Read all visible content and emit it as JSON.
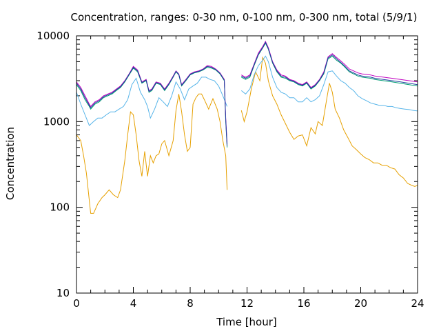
{
  "chart_data": {
    "type": "line",
    "title": "Concentration, ranges: 0-30 nm, 0-100 nm, 0-300 nm, total (5/9/1)",
    "xlabel": "Time [hour]",
    "ylabel": "Concentration",
    "xlim": [
      0,
      24
    ],
    "ylim": [
      10,
      10000
    ],
    "yscale": "log",
    "grid": false,
    "legend": "none",
    "x_ticks": [
      0,
      4,
      8,
      12,
      16,
      20,
      24
    ],
    "x_tick_labels": [
      "0",
      "4",
      "8",
      "12",
      "16",
      "20",
      "24"
    ],
    "y_ticks": [
      10,
      100,
      1000,
      10000
    ],
    "y_tick_labels": [
      "10",
      "100",
      "1000",
      "10000"
    ],
    "series": [
      {
        "color": "#e6a000",
        "segments": [
          {
            "x": [
              0.0,
              0.3,
              0.5,
              0.7,
              0.9,
              1.0,
              1.2,
              1.5,
              1.8,
              2.0,
              2.3,
              2.6,
              2.9,
              3.1,
              3.4,
              3.6,
              3.8,
              4.0,
              4.2,
              4.4,
              4.6,
              4.8,
              5.0,
              5.2,
              5.4,
              5.6,
              5.8,
              6.0,
              6.2,
              6.5,
              6.8,
              7.0,
              7.2,
              7.4,
              7.6,
              7.8,
              8.0,
              8.2,
              8.4,
              8.6,
              8.8,
              9.0,
              9.3,
              9.6,
              9.9,
              10.1,
              10.3,
              10.5,
              10.6
            ],
            "y": [
              700,
              600,
              400,
              250,
              120,
              85,
              85,
              110,
              130,
              140,
              160,
              140,
              130,
              160,
              350,
              700,
              1300,
              1200,
              700,
              350,
              230,
              450,
              230,
              400,
              330,
              400,
              420,
              550,
              600,
              400,
              600,
              1350,
              2100,
              1300,
              700,
              450,
              500,
              1600,
              1900,
              2100,
              2100,
              1800,
              1400,
              1850,
              1400,
              1000,
              600,
              400,
              160
            ]
          },
          {
            "x": [
              11.6,
              11.8,
              12.0,
              12.3,
              12.6,
              12.9,
              13.1,
              13.3,
              13.5,
              13.8,
              14.1,
              14.4,
              14.7,
              15.0,
              15.3,
              15.6,
              15.9,
              16.2,
              16.5,
              16.8,
              17.0,
              17.3,
              17.6,
              17.8,
              18.0,
              18.2,
              18.5,
              18.8,
              19.1,
              19.4,
              19.7,
              20.0,
              20.3,
              20.6,
              20.9,
              21.2,
              21.5,
              21.8,
              22.1,
              22.4,
              22.7,
              23.0,
              23.3,
              23.6,
              23.8,
              24.0
            ],
            "y": [
              1350,
              1000,
              1300,
              2400,
              3800,
              3000,
              5600,
              4800,
              3000,
              2000,
              1600,
              1200,
              950,
              750,
              620,
              680,
              700,
              520,
              850,
              720,
              1000,
              900,
              1800,
              2800,
              2200,
              1400,
              1100,
              800,
              650,
              520,
              470,
              420,
              380,
              360,
              330,
              330,
              310,
              310,
              290,
              280,
              240,
              220,
              190,
              180,
              175,
              180
            ]
          }
        ]
      },
      {
        "color": "#56b4e9",
        "segments": [
          {
            "x": [
              0.0,
              0.3,
              0.6,
              0.9,
              1.2,
              1.5,
              1.8,
              2.1,
              2.4,
              2.7,
              3.0,
              3.3,
              3.6,
              3.9,
              4.2,
              4.5,
              4.8,
              5.0,
              5.2,
              5.5,
              5.8,
              6.1,
              6.4,
              6.7,
              7.0,
              7.3,
              7.6,
              7.9,
              8.2,
              8.5,
              8.8,
              9.1,
              9.4,
              9.7,
              10.0,
              10.3,
              10.6
            ],
            "y": [
              2200,
              1600,
              1200,
              900,
              1000,
              1100,
              1100,
              1200,
              1300,
              1300,
              1400,
              1500,
              1800,
              2700,
              3200,
              2200,
              1800,
              1500,
              1100,
              1400,
              1900,
              1700,
              1500,
              2000,
              2900,
              2400,
              1800,
              2400,
              2600,
              2800,
              3300,
              3300,
              3100,
              3000,
              2600,
              2000,
              1500
            ]
          },
          {
            "x": [
              11.6,
              11.9,
              12.2,
              12.5,
              12.8,
              13.1,
              13.3,
              13.5,
              13.8,
              14.1,
              14.4,
              14.7,
              15.0,
              15.3,
              15.6,
              15.9,
              16.2,
              16.5,
              16.8,
              17.1,
              17.4,
              17.7,
              18.0,
              18.3,
              18.6,
              18.9,
              19.2,
              19.5,
              19.8,
              20.1,
              20.4,
              20.7,
              21.0,
              21.3,
              21.6,
              21.9,
              22.2,
              22.5,
              22.8,
              23.1,
              23.4,
              23.7,
              24.0
            ],
            "y": [
              2300,
              2100,
              2400,
              3500,
              4500,
              5200,
              5800,
              5000,
              3300,
              2500,
              2200,
              2100,
              1900,
              1900,
              1700,
              1700,
              1900,
              1700,
              1800,
              2000,
              2700,
              3800,
              3900,
              3400,
              3000,
              2800,
              2500,
              2300,
              2000,
              1850,
              1750,
              1650,
              1600,
              1550,
              1550,
              1500,
              1500,
              1450,
              1420,
              1400,
              1380,
              1350,
              1330
            ]
          }
        ]
      },
      {
        "color": "#009e73",
        "segments": [
          {
            "x": [
              0.0,
              0.3,
              0.6,
              0.9,
              1.0,
              1.3,
              1.6,
              1.9,
              2.2,
              2.5,
              2.8,
              3.1,
              3.4,
              3.7,
              4.0,
              4.3,
              4.6,
              4.9,
              5.1,
              5.3,
              5.6,
              5.9,
              6.2,
              6.5,
              6.8,
              7.0,
              7.2,
              7.4,
              7.7,
              8.0,
              8.3,
              8.6,
              8.9,
              9.2,
              9.5,
              9.8,
              10.1,
              10.4,
              10.5,
              10.6
            ],
            "y": [
              2700,
              2300,
              1800,
              1500,
              1400,
              1600,
              1700,
              1900,
              2000,
              2100,
              2300,
              2500,
              2900,
              3500,
              4200,
              3800,
              2800,
              3000,
              2200,
              2300,
              2800,
              2700,
              2300,
              2700,
              3300,
              3800,
              3500,
              2600,
              3000,
              3500,
              3700,
              3800,
              4000,
              4300,
              4200,
              4000,
              3600,
              3000,
              1000,
              500
            ]
          },
          {
            "x": [
              11.6,
              11.9,
              12.2,
              12.5,
              12.8,
              13.1,
              13.3,
              13.5,
              13.8,
              14.1,
              14.4,
              14.7,
              15.0,
              15.3,
              15.6,
              15.9,
              16.2,
              16.5,
              16.8,
              17.1,
              17.4,
              17.7,
              18.0,
              18.3,
              18.6,
              18.9,
              19.2,
              19.5,
              19.8,
              20.1,
              20.4,
              20.7,
              21.0,
              21.3,
              21.6,
              21.9,
              22.2,
              22.5,
              22.8,
              23.1,
              23.4,
              23.7,
              24.0
            ],
            "y": [
              3300,
              3100,
              3300,
              4500,
              6000,
              7200,
              8200,
              7000,
              4800,
              3800,
              3300,
              3200,
              3000,
              2900,
              2700,
              2600,
              2800,
              2400,
              2600,
              3000,
              3600,
              5400,
              5800,
              5200,
              4800,
              4300,
              3800,
              3600,
              3400,
              3300,
              3250,
              3200,
              3100,
              3050,
              3000,
              2950,
              2900,
              2850,
              2800,
              2750,
              2700,
              2650,
              2600
            ]
          }
        ]
      },
      {
        "color": "#c000c0",
        "segments": [
          {
            "x": [
              0.0,
              0.3,
              0.6,
              0.9,
              1.0,
              1.3,
              1.6,
              1.9,
              2.2,
              2.5,
              2.8,
              3.1,
              3.4,
              3.7,
              4.0,
              4.3,
              4.6,
              4.9,
              5.1,
              5.3,
              5.6,
              5.9,
              6.2,
              6.5,
              6.8,
              7.0,
              7.2,
              7.4,
              7.7,
              8.0,
              8.3,
              8.6,
              8.9,
              9.2,
              9.5,
              9.8,
              10.1,
              10.4,
              10.5,
              10.6
            ],
            "y": [
              2900,
              2500,
              2000,
              1600,
              1500,
              1700,
              1800,
              2000,
              2100,
              2200,
              2400,
              2600,
              3000,
              3600,
              4400,
              4000,
              2900,
              3100,
              2300,
              2400,
              2900,
              2800,
              2400,
              2800,
              3400,
              3900,
              3600,
              2700,
              3100,
              3600,
              3800,
              3900,
              4100,
              4500,
              4400,
              4100,
              3700,
              3100,
              1100,
              550
            ]
          },
          {
            "x": [
              11.6,
              11.9,
              12.2,
              12.5,
              12.8,
              13.1,
              13.3,
              13.5,
              13.8,
              14.1,
              14.4,
              14.7,
              15.0,
              15.3,
              15.6,
              15.9,
              16.2,
              16.5,
              16.8,
              17.1,
              17.4,
              17.7,
              18.0,
              18.3,
              18.6,
              18.9,
              19.2,
              19.5,
              19.8,
              20.1,
              20.4,
              20.7,
              21.0,
              21.3,
              21.6,
              21.9,
              22.2,
              22.5,
              22.8,
              23.1,
              23.4,
              23.7,
              24.0
            ],
            "y": [
              3500,
              3300,
              3500,
              4700,
              6300,
              7500,
              8600,
              7300,
              5000,
              4000,
              3500,
              3400,
              3100,
              3000,
              2800,
              2700,
              2900,
              2500,
              2700,
              3100,
              3800,
              5700,
              6200,
              5600,
              5100,
              4600,
              4100,
              3900,
              3700,
              3600,
              3550,
              3500,
              3400,
              3350,
              3300,
              3250,
              3200,
              3150,
              3100,
              3050,
              3000,
              2950,
              2900
            ]
          }
        ]
      },
      {
        "color": "#2040a0",
        "segments": [
          {
            "x": [
              0.0,
              0.3,
              0.6,
              0.9,
              1.0,
              1.3,
              1.6,
              1.9,
              2.2,
              2.5,
              2.8,
              3.1,
              3.4,
              3.7,
              4.0,
              4.3,
              4.6,
              4.9,
              5.1,
              5.3,
              5.6,
              5.9,
              6.2,
              6.5,
              6.8,
              7.0,
              7.2,
              7.4,
              7.7,
              8.0,
              8.3,
              8.6,
              8.9,
              9.2,
              9.5,
              9.8,
              10.1,
              10.4,
              10.5,
              10.6
            ],
            "y": [
              2800,
              2400,
              1900,
              1550,
              1450,
              1650,
              1750,
              1950,
              2050,
              2150,
              2350,
              2550,
              2950,
              3550,
              4300,
              3900,
              2850,
              3050,
              2250,
              2350,
              2850,
              2750,
              2350,
              2750,
              3350,
              3850,
              3550,
              2650,
              3050,
              3550,
              3750,
              3850,
              4050,
              4400,
              4300,
              4050,
              3650,
              3050,
              1050,
              520
            ]
          },
          {
            "x": [
              11.6,
              11.9,
              12.2,
              12.5,
              12.8,
              13.1,
              13.3,
              13.5,
              13.8,
              14.1,
              14.4,
              14.7,
              15.0,
              15.3,
              15.6,
              15.9,
              16.2,
              16.5,
              16.8,
              17.1,
              17.4,
              17.7,
              18.0,
              18.3,
              18.6,
              18.9,
              19.2,
              19.5,
              19.8,
              20.1,
              20.4,
              20.7,
              21.0,
              21.3,
              21.6,
              21.9,
              22.2,
              22.5,
              22.8,
              23.1,
              23.4,
              23.7,
              24.0
            ],
            "y": [
              3400,
              3200,
              3400,
              4600,
              6100,
              7300,
              8400,
              7100,
              4900,
              3900,
              3400,
              3300,
              3050,
              2950,
              2750,
              2650,
              2850,
              2450,
              2650,
              3050,
              3700,
              5550,
              6000,
              5400,
              4900,
              4400,
              3900,
              3700,
              3500,
              3400,
              3350,
              3300,
              3200,
              3150,
              3100,
              3050,
              3000,
              2950,
              2900,
              2850,
              2800,
              2750,
              2700
            ]
          }
        ]
      }
    ]
  }
}
